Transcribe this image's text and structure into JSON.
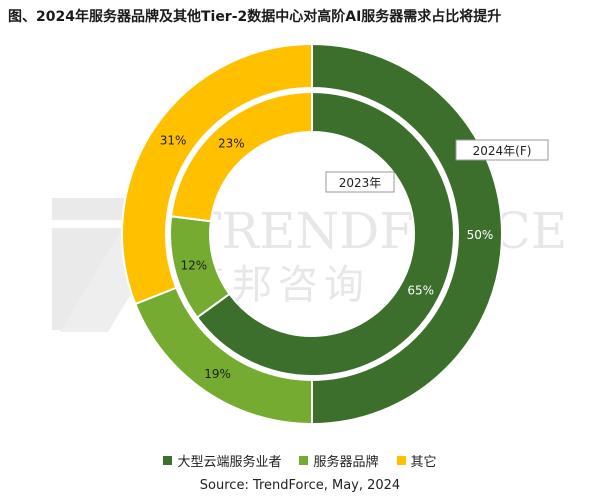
{
  "chart_data": {
    "type": "pie",
    "subtype": "double-donut",
    "title": "图、2024年服务器品牌及其他Tier-2数据中心对高阶AI服务器需求占比将提升",
    "categories": [
      "大型云端服务业者",
      "服务器品牌",
      "其它"
    ],
    "colors": [
      "#3c6e2c",
      "#75ab30",
      "#ffc000"
    ],
    "series": [
      {
        "name": "2024年(F)",
        "ring": "outer",
        "values": [
          50,
          19,
          31
        ],
        "labels": [
          "50%",
          "19%",
          "31%"
        ]
      },
      {
        "name": "2023年",
        "ring": "inner",
        "values": [
          65,
          12,
          23
        ],
        "labels": [
          "65%",
          "12%",
          "23%"
        ]
      }
    ],
    "legend_position": "bottom",
    "watermark": "TRENDFORCE 集邦咨询"
  },
  "source": "Source: TrendForce, May, 2024"
}
